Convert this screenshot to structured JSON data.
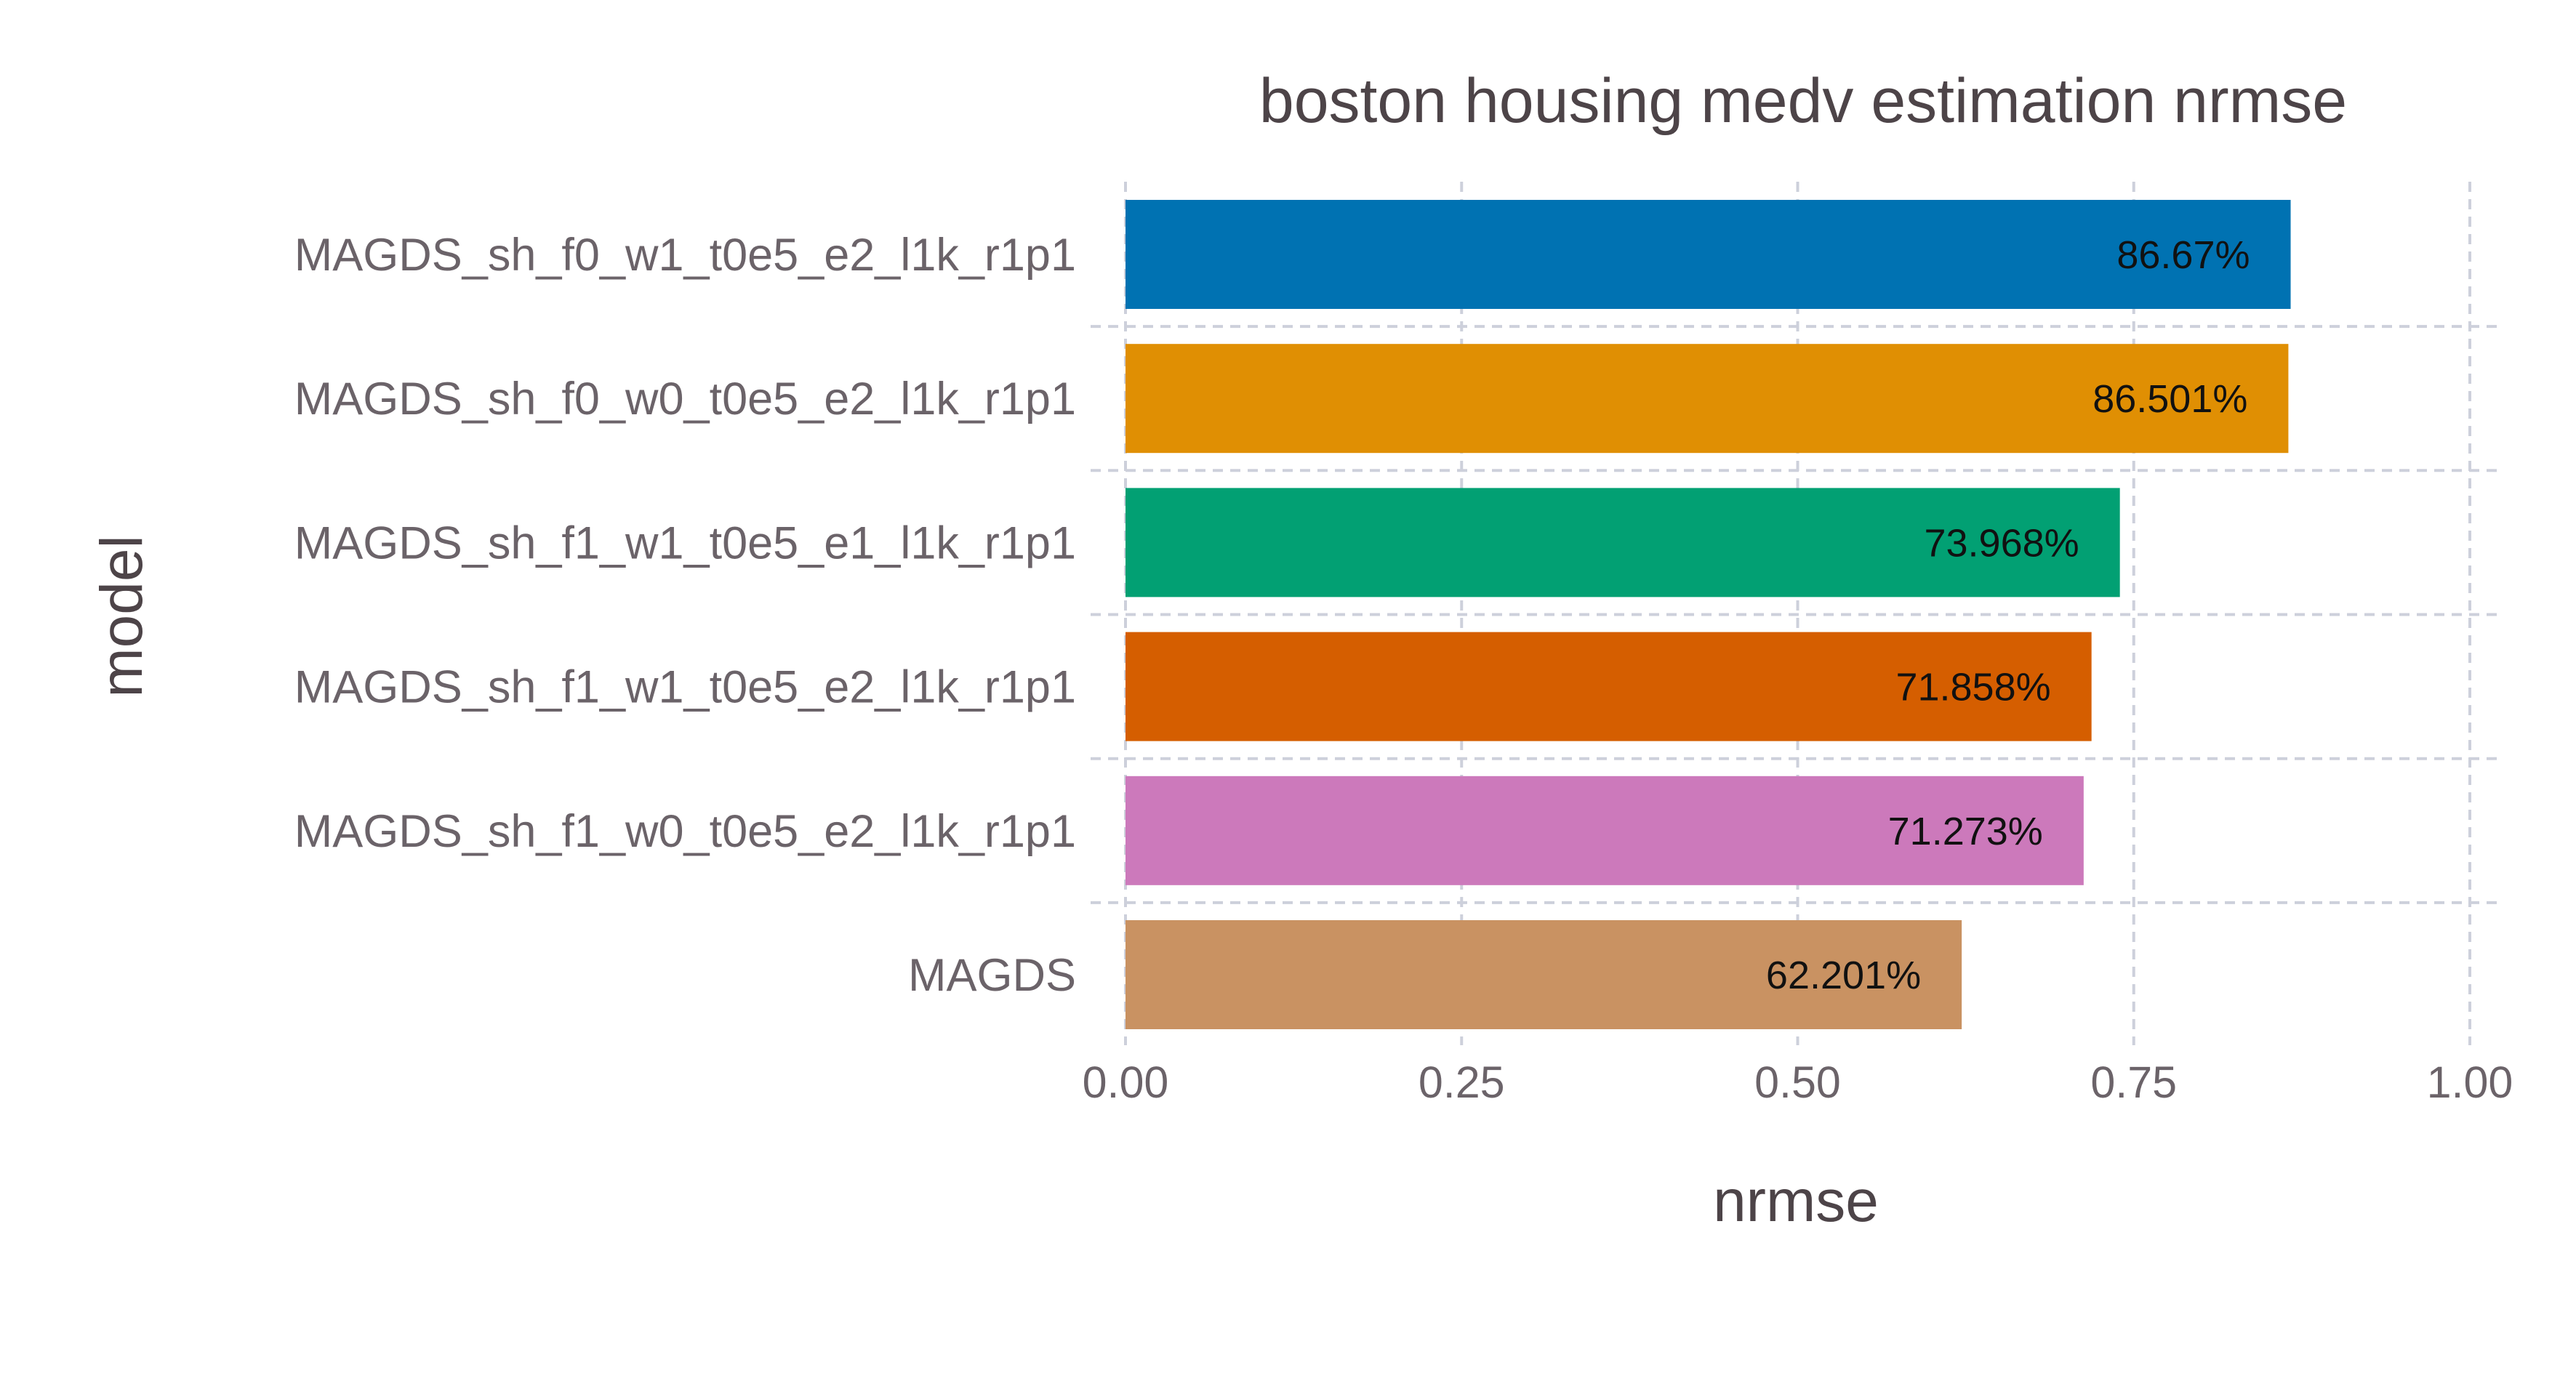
{
  "chart_data": {
    "type": "bar",
    "orientation": "horizontal",
    "title": "boston housing medv estimation nrmse",
    "xlabel": "nrmse",
    "ylabel": "model",
    "xlim": [
      0,
      1
    ],
    "xticks": [
      "0.00",
      "0.25",
      "0.50",
      "0.75",
      "1.00"
    ],
    "xtick_values": [
      0,
      0.25,
      0.5,
      0.75,
      1.0
    ],
    "grid": true,
    "legend": "none",
    "bars": [
      {
        "category": "MAGDS_sh_f0_w1_t0e5_e2_l1k_r1p1",
        "value": 0.8667,
        "label": "86.67%",
        "color": "#0072b2"
      },
      {
        "category": "MAGDS_sh_f0_w0_t0e5_e2_l1k_r1p1",
        "value": 0.86501,
        "label": "86.501%",
        "color": "#e08f03"
      },
      {
        "category": "MAGDS_sh_f1_w1_t0e5_e1_l1k_r1p1",
        "value": 0.73968,
        "label": "73.968%",
        "color": "#02a073"
      },
      {
        "category": "MAGDS_sh_f1_w1_t0e5_e2_l1k_r1p1",
        "value": 0.71858,
        "label": "71.858%",
        "color": "#d55e00"
      },
      {
        "category": "MAGDS_sh_f1_w0_t0e5_e2_l1k_r1p1",
        "value": 0.71273,
        "label": "71.273%",
        "color": "#cc79bb"
      },
      {
        "category": "MAGDS",
        "value": 0.62201,
        "label": "62.201%",
        "color": "#c99262"
      }
    ]
  }
}
